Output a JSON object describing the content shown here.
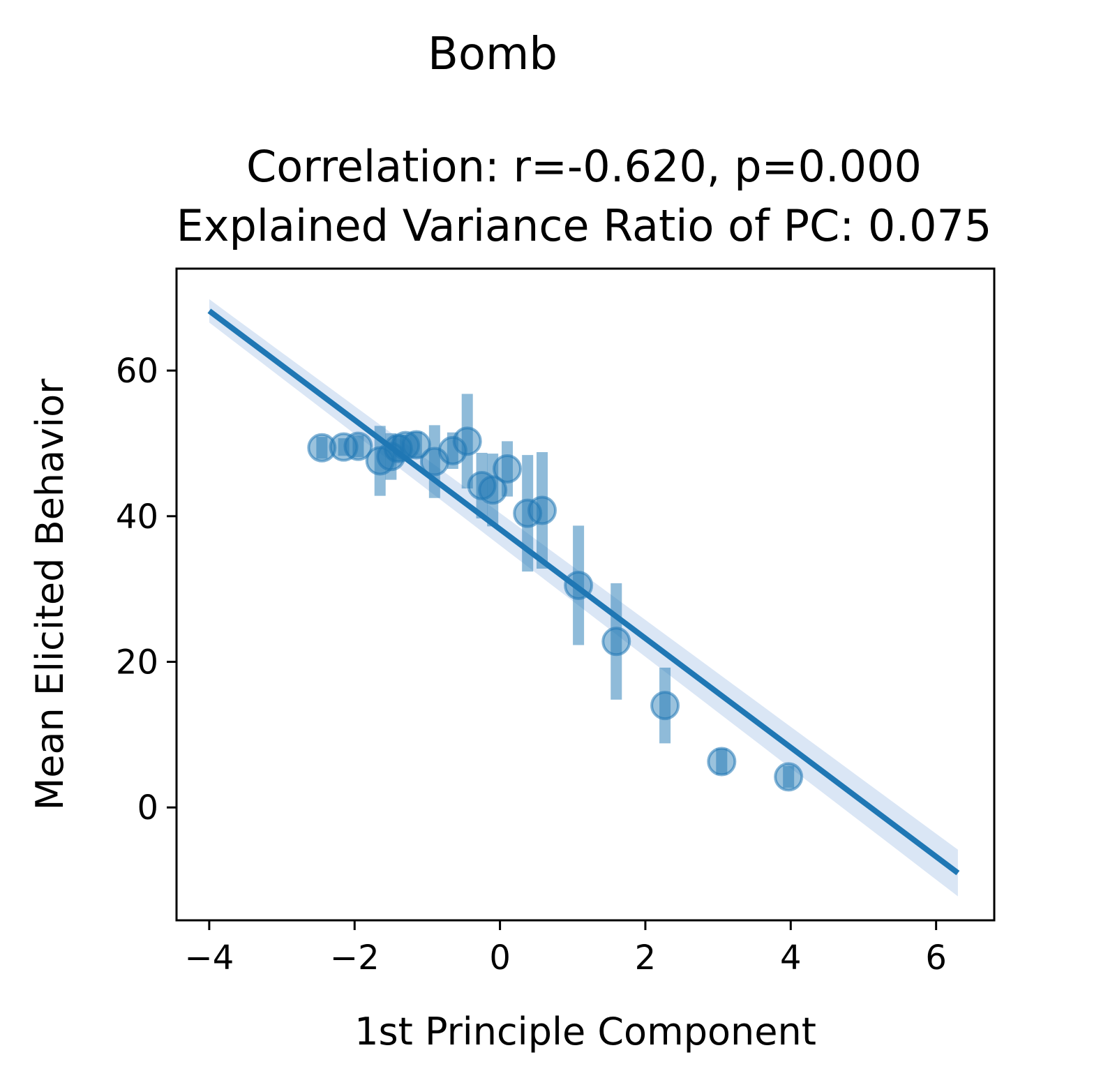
{
  "chart_data": {
    "type": "scatter",
    "suptitle": "Bomb",
    "title_lines": [
      "Correlation: r=-0.620, p=0.000",
      "Explained Variance Ratio of PC: 0.075"
    ],
    "xlabel": "1st Principle Component",
    "ylabel": "Mean Elicited Behavior",
    "xlim": [
      -4.45,
      6.8
    ],
    "ylim": [
      -15.5,
      74
    ],
    "xticks": [
      -4,
      -2,
      0,
      2,
      4,
      6
    ],
    "xtick_labels": [
      "−4",
      "−2",
      "0",
      "2",
      "4",
      "6"
    ],
    "yticks": [
      0,
      20,
      40,
      60
    ],
    "ytick_labels": [
      "0",
      "20",
      "40",
      "60"
    ],
    "grid": false,
    "colors": {
      "series": "#1f77b4",
      "ci_band": "#aec7e8"
    },
    "regression": {
      "x_range": [
        -4.0,
        6.3
      ],
      "y_at_start": 68.2,
      "y_at_end": -9.0,
      "ci_halfwidth_start": 1.6,
      "ci_halfwidth_end": 3.2
    },
    "points": [
      {
        "x": -2.45,
        "y": 49.4,
        "err": 1.5
      },
      {
        "x": -2.15,
        "y": 49.5,
        "err": 1.2
      },
      {
        "x": -1.95,
        "y": 49.6,
        "err": 1.5
      },
      {
        "x": -1.65,
        "y": 47.6,
        "err": 4.8
      },
      {
        "x": -1.5,
        "y": 48.2,
        "err": 3.2
      },
      {
        "x": -1.4,
        "y": 49.3,
        "err": 1.8
      },
      {
        "x": -1.3,
        "y": 49.7,
        "err": 1.5
      },
      {
        "x": -1.15,
        "y": 49.8,
        "err": 1.8
      },
      {
        "x": -0.9,
        "y": 47.5,
        "err": 5.0
      },
      {
        "x": -0.65,
        "y": 49.0,
        "err": 2.5
      },
      {
        "x": -0.45,
        "y": 50.3,
        "err": 6.5
      },
      {
        "x": -0.25,
        "y": 44.2,
        "err": 4.5
      },
      {
        "x": -0.1,
        "y": 43.6,
        "err": 5.0
      },
      {
        "x": 0.1,
        "y": 46.5,
        "err": 3.8
      },
      {
        "x": 0.38,
        "y": 40.4,
        "err": 8.0
      },
      {
        "x": 0.58,
        "y": 40.8,
        "err": 8.0
      },
      {
        "x": 1.08,
        "y": 30.5,
        "err": 8.2
      },
      {
        "x": 1.6,
        "y": 22.8,
        "err": 8.0
      },
      {
        "x": 2.27,
        "y": 14.0,
        "err": 5.2
      },
      {
        "x": 3.05,
        "y": 6.3,
        "err": 1.8
      },
      {
        "x": 3.97,
        "y": 4.2,
        "err": 1.5
      }
    ]
  }
}
